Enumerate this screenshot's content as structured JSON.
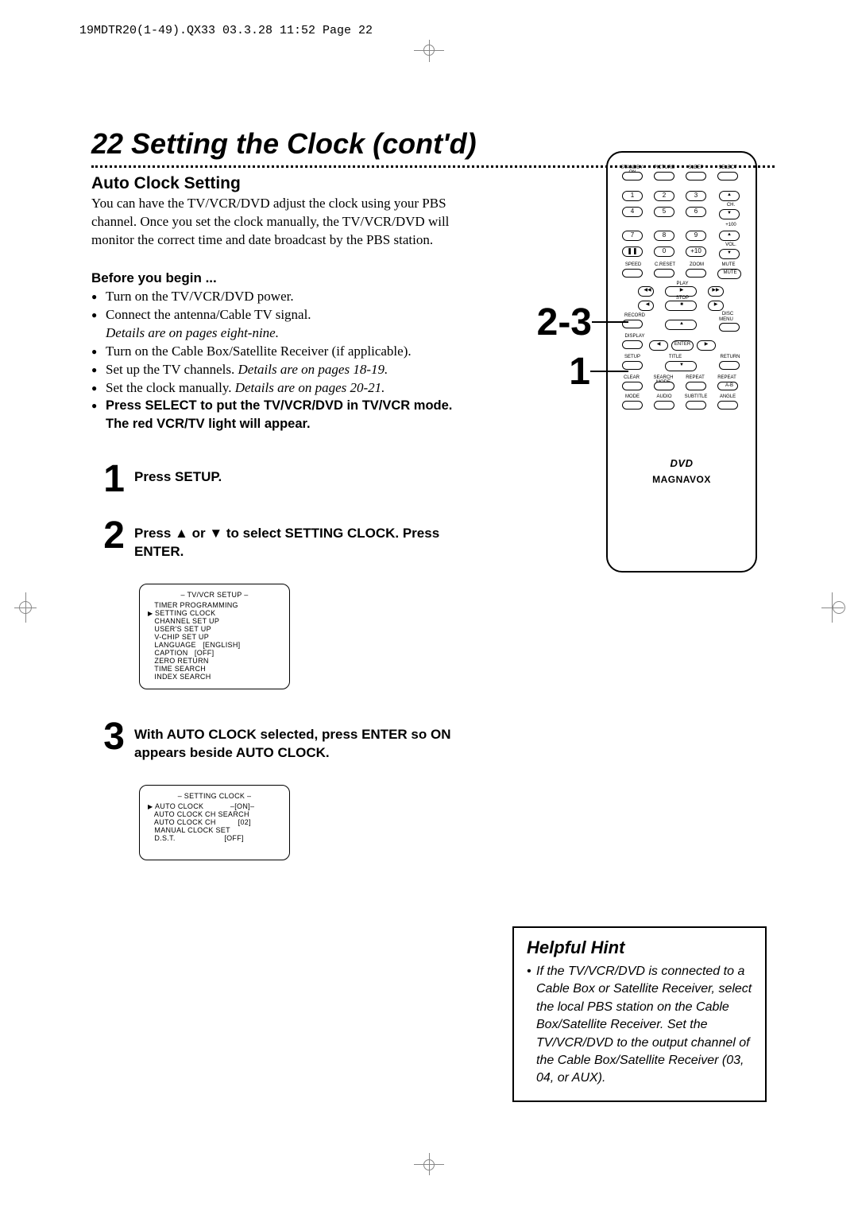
{
  "header_text": "19MDTR20(1-49).QX33  03.3.28 11:52  Page 22",
  "page_title": "22  Setting the Clock (cont'd)",
  "section_heading": "Auto Clock Setting",
  "intro": "You can have the TV/VCR/DVD adjust the clock using your PBS channel. Once you set the clock manually, the TV/VCR/DVD will monitor the correct time and date broadcast by the PBS station.",
  "before_begin": "Before you begin ...",
  "bullets": [
    {
      "text": "Turn on the TV/VCR/DVD power."
    },
    {
      "text": "Connect the antenna/Cable TV signal.",
      "extra_italic": "Details are on pages eight-nine."
    },
    {
      "text": "Turn on the Cable Box/Satellite Receiver (if applicable)."
    },
    {
      "text": "Set up the TV channels. ",
      "inline_italic": "Details are on pages 18-19."
    },
    {
      "text": "Set the clock manually. ",
      "inline_italic": "Details are on pages 20-21."
    },
    {
      "bold": "Press SELECT to put the TV/VCR/DVD in TV/VCR mode. The red VCR/TV light will appear."
    }
  ],
  "steps": [
    {
      "num": "1",
      "body": "Press SETUP."
    },
    {
      "num": "2",
      "body": "Press ▲ or ▼ to select SETTING CLOCK. Press ENTER."
    },
    {
      "num": "3",
      "body": "With AUTO CLOCK selected, press ENTER so ON appears beside AUTO CLOCK."
    }
  ],
  "screen1": {
    "title": "– TV/VCR SETUP –",
    "rows": [
      "TIMER PROGRAMMING",
      "SETTING CLOCK",
      "CHANNEL SET UP",
      "USER'S SET UP",
      "V-CHIP SET UP",
      "LANGUAGE   [ENGLISH]",
      "CAPTION   [OFF]",
      "ZERO RETURN",
      "TIME SEARCH",
      "INDEX SEARCH"
    ],
    "arrow_row": 1
  },
  "screen2": {
    "title": "– SETTING CLOCK –",
    "rows": [
      "AUTO CLOCK            –[ON]–",
      "AUTO CLOCK CH SEARCH",
      "AUTO CLOCK CH          [02]",
      "MANUAL CLOCK SET",
      "D.S.T.                      [OFF]"
    ],
    "arrow_row": 0
  },
  "helpful": {
    "title": "Helpful Hint",
    "body": "If the TV/VCR/DVD is connected to a Cable Box or Satellite Receiver, select the local PBS station on the Cable Box/Satellite Receiver. Set the TV/VCR/DVD to the output channel of the Cable Box/Satellite Receiver (03, 04, or AUX)."
  },
  "remote": {
    "row1_labels": [
      "STANDBY-ON",
      "PICTURE",
      "SLEEP",
      "SELECT"
    ],
    "numpad": [
      [
        "1",
        "2",
        "3"
      ],
      [
        "4",
        "5",
        "6"
      ],
      [
        "7",
        "8",
        "9"
      ],
      [
        "❚❚",
        "0",
        "+10"
      ]
    ],
    "side_labels": [
      "CH.",
      "+100",
      "VOL."
    ],
    "row_below_num": [
      "SPEED",
      "C.RESET",
      "ZOOM",
      "MUTE"
    ],
    "play_label": "PLAY",
    "stop_label": "STOP",
    "record_label": "RECORD",
    "disc_menu_label": "DISC MENU",
    "display_label": "DISPLAY",
    "enter_label": "ENTER",
    "setup_label": "SETUP",
    "title_label": "TITLE",
    "return_label": "RETURN",
    "row_bottom1": [
      "CLEAR",
      "SEARCH MODE",
      "REPEAT",
      "REPEAT"
    ],
    "ab_label": "A-B",
    "row_bottom2": [
      "MODE",
      "AUDIO",
      "SUBTITLE",
      "ANGLE"
    ],
    "brand": "MAGNAVOX",
    "dvd": "DVD"
  },
  "callouts": {
    "c1": "2-3",
    "c2": "1"
  }
}
